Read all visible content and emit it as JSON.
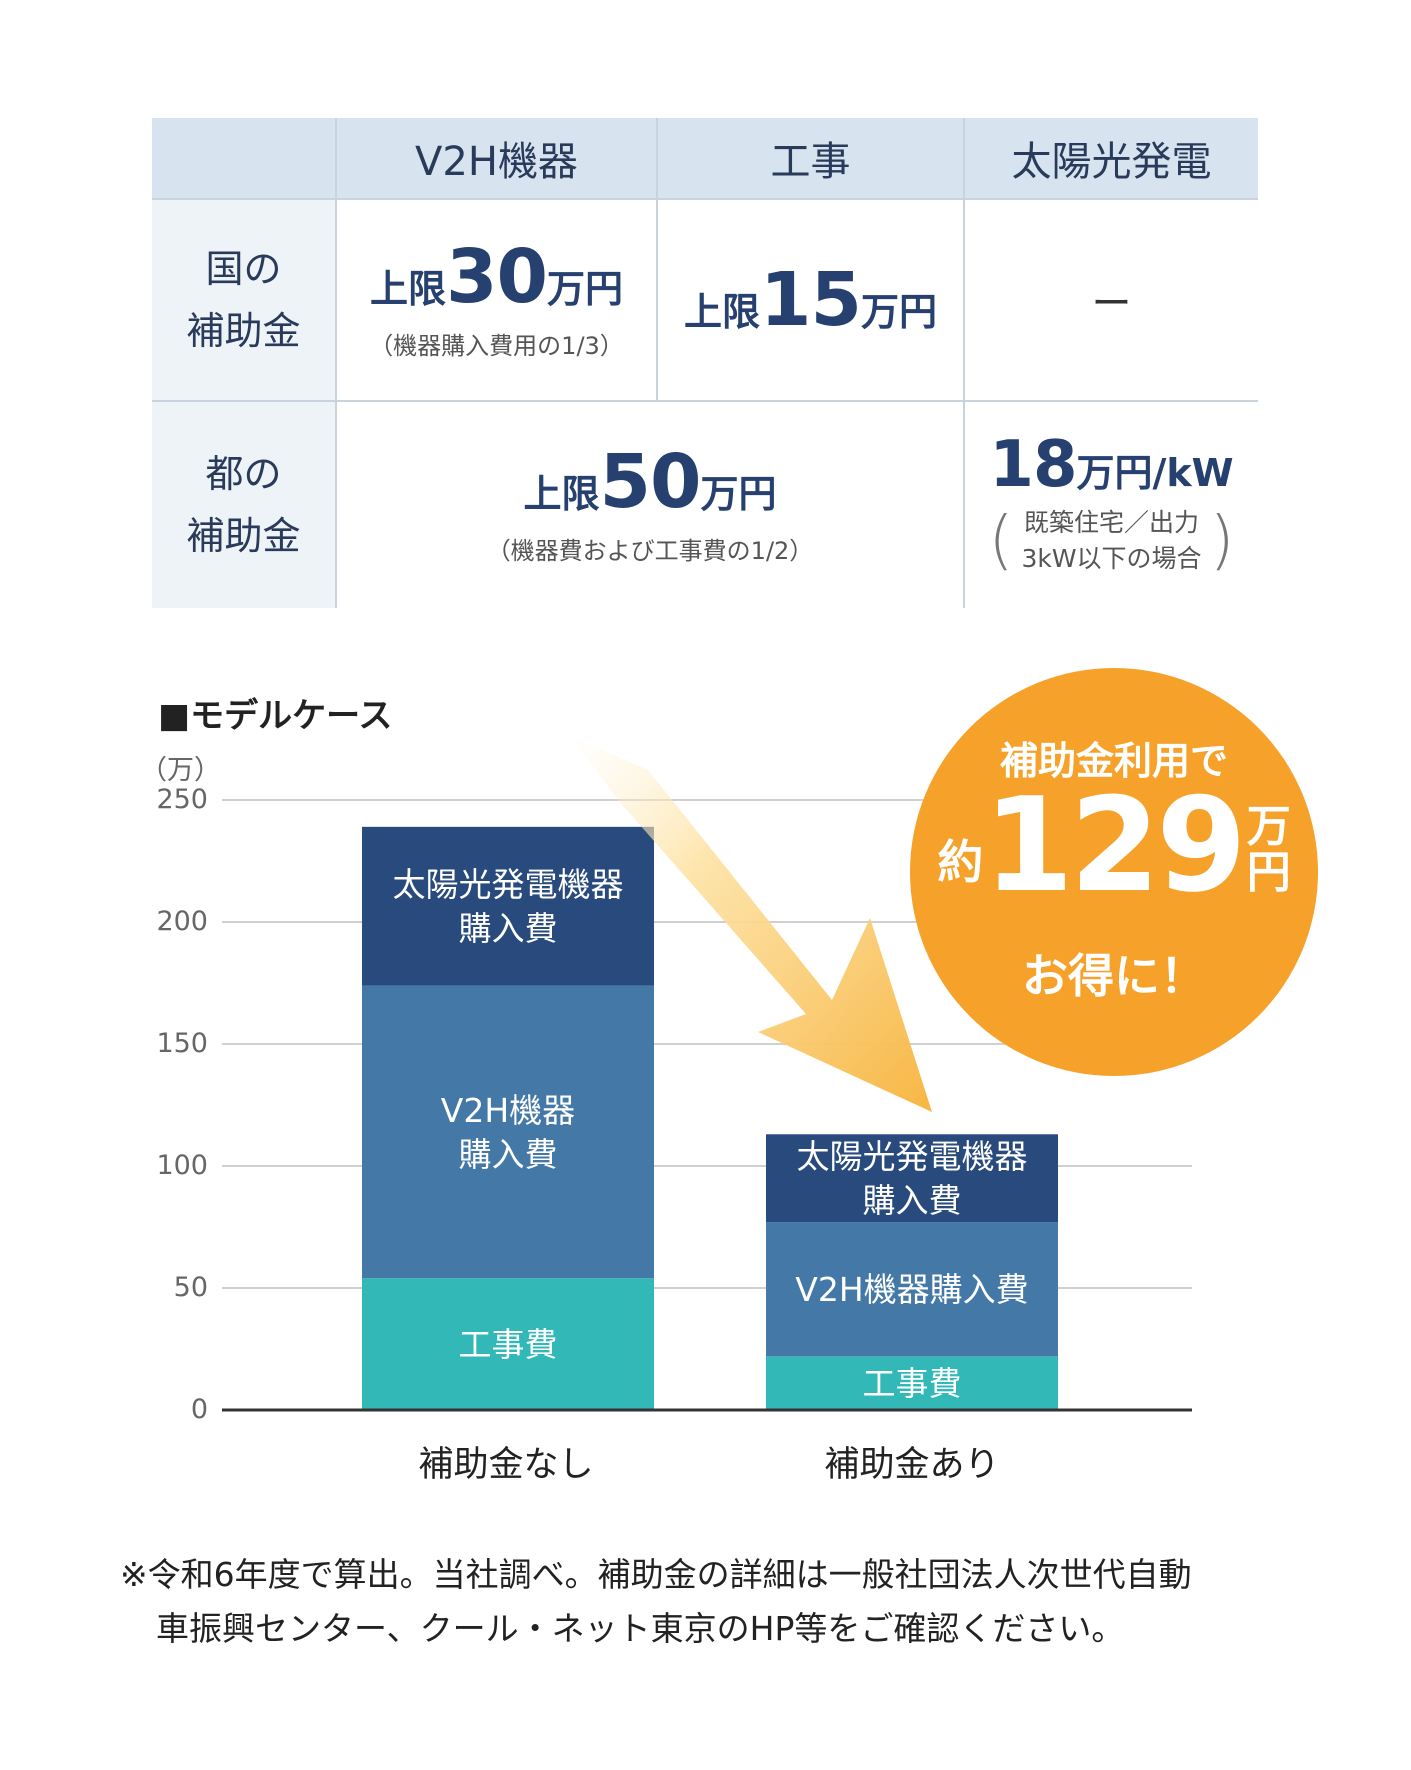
{
  "table": {
    "headers": [
      "V2H機器",
      "工事",
      "太陽光発電"
    ],
    "rows": {
      "national": {
        "label_line1": "国の",
        "label_line2": "補助金",
        "v2h": {
          "prefix": "上限",
          "num": "30",
          "unit": "万円",
          "note": "（機器購入費用の1/3）"
        },
        "construction": {
          "prefix": "上限",
          "num": "15",
          "unit": "万円"
        },
        "solar": "ー"
      },
      "tokyo": {
        "label_line1": "都の",
        "label_line2": "補助金",
        "v2h_construction": {
          "prefix": "上限",
          "num": "50",
          "unit": "万円",
          "note": "（機器費および工事費の1/2）"
        },
        "solar": {
          "num": "18",
          "unit": "万円/kW",
          "note_line1": "既築住宅／出力",
          "note_line2": "3kW以下の場合"
        }
      }
    }
  },
  "chart_data": {
    "type": "bar",
    "stacked": true,
    "title": "■モデルケース",
    "ylabel": "（万）",
    "ylim": [
      0,
      250
    ],
    "yticks": [
      "0",
      "50",
      "100",
      "150",
      "200",
      "250"
    ],
    "categories": [
      "補助金なし",
      "補助金あり"
    ],
    "series": [
      {
        "name": "工事費",
        "values": [
          54,
          22
        ],
        "color": "#33b8b8"
      },
      {
        "name": "V2H機器購入費",
        "values": [
          120,
          55
        ],
        "color": "#4478a6"
      },
      {
        "name": "太陽光発電機器購入費",
        "values": [
          65,
          36
        ],
        "color": "#284a7d"
      }
    ],
    "labels": {
      "a_solar": [
        "太陽光発電機器",
        "購入費"
      ],
      "a_v2h": [
        "V2H機器",
        "購入費"
      ],
      "a_con": "工事費",
      "b_solar": [
        "太陽光発電機器",
        "購入費"
      ],
      "b_v2h": "V2H機器購入費",
      "b_con": "工事費"
    }
  },
  "badge": {
    "line1": "補助金利用で",
    "prefix": "約",
    "num": "129",
    "unit_top": "万",
    "unit_bottom": "円",
    "line3": "お得に！"
  },
  "footer": {
    "line1": "※令和6年度で算出。当社調べ。補助金の詳細は一般社団法人次世代自動",
    "line2": "車振興センター、クール・ネット東京のHP等をご確認ください。"
  }
}
